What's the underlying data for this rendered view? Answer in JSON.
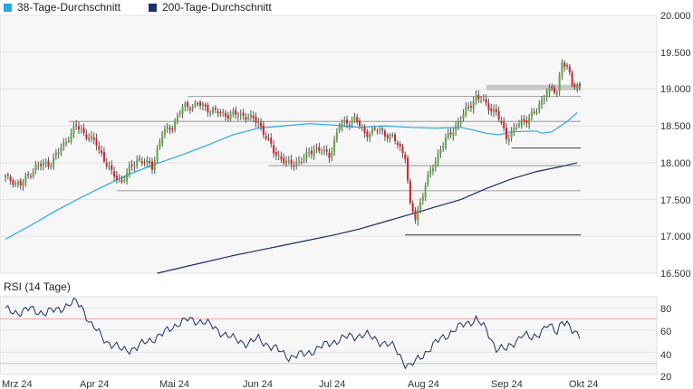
{
  "legend": [
    {
      "label": "38-Tage-Durchschnitt",
      "color": "#29a9e1"
    },
    {
      "label": "200-Tage-Durchschnitt",
      "color": "#1c2f6e"
    }
  ],
  "rsi_title": "RSI (14 Tage)",
  "chart_data": [
    {
      "type": "candlestick",
      "ylim": [
        16500,
        20000
      ],
      "y_ticks": [
        "20.000",
        "19.500",
        "19.000",
        "18.500",
        "18.000",
        "17.500",
        "17.000",
        "16.500"
      ],
      "x_ticks": [
        "Mrz 24",
        "Apr 24",
        "Mai 24",
        "Jun 24",
        "Jul 24",
        "Aug 24",
        "Sep 24",
        "Okt 24"
      ],
      "series": [
        {
          "name": "38-Tage-Durchschnitt",
          "color": "#29a9e1",
          "points": [
            [
              0,
              16960
            ],
            [
              10,
              17150
            ],
            [
              20,
              17350
            ],
            [
              30,
              17530
            ],
            [
              40,
              17700
            ],
            [
              50,
              17860
            ],
            [
              60,
              17990
            ],
            [
              70,
              18110
            ],
            [
              80,
              18240
            ],
            [
              90,
              18380
            ],
            [
              100,
              18470
            ],
            [
              110,
              18500
            ],
            [
              120,
              18530
            ],
            [
              130,
              18510
            ],
            [
              140,
              18480
            ],
            [
              150,
              18500
            ],
            [
              160,
              18480
            ],
            [
              170,
              18470
            ],
            [
              180,
              18480
            ],
            [
              184,
              18450
            ],
            [
              190,
              18400
            ],
            [
              195,
              18380
            ],
            [
              200,
              18420
            ],
            [
              210,
              18430
            ],
            [
              212,
              18400
            ],
            [
              216,
              18420
            ],
            [
              222,
              18560
            ],
            [
              226,
              18680
            ]
          ]
        },
        {
          "name": "200-Tage-Durchschnitt",
          "color": "#1c2f6e",
          "points": [
            [
              60,
              16500
            ],
            [
              70,
              16580
            ],
            [
              80,
              16660
            ],
            [
              90,
              16740
            ],
            [
              100,
              16810
            ],
            [
              110,
              16880
            ],
            [
              120,
              16950
            ],
            [
              130,
              17020
            ],
            [
              140,
              17100
            ],
            [
              150,
              17200
            ],
            [
              160,
              17300
            ],
            [
              170,
              17400
            ],
            [
              180,
              17500
            ],
            [
              190,
              17650
            ],
            [
              200,
              17780
            ],
            [
              210,
              17880
            ],
            [
              220,
              17950
            ],
            [
              226,
              18000
            ]
          ]
        }
      ],
      "levels": [
        {
          "value": 19020,
          "x": [
            190,
            226
          ]
        },
        {
          "value": 18900,
          "x": [
            72,
            226
          ]
        },
        {
          "value": 18560,
          "x": [
            25,
            226
          ]
        },
        {
          "value": 18200,
          "x": [
            200,
            226
          ]
        },
        {
          "value": 17960,
          "x": [
            104,
            226
          ]
        },
        {
          "value": 17620,
          "x": [
            44,
            226
          ]
        },
        {
          "value": 17020,
          "x": [
            158,
            226
          ]
        }
      ],
      "candles": {
        "count": 228,
        "anchors": [
          [
            0,
            17800
          ],
          [
            6,
            17700
          ],
          [
            12,
            17950
          ],
          [
            18,
            18000
          ],
          [
            28,
            18500
          ],
          [
            36,
            18250
          ],
          [
            42,
            17850
          ],
          [
            46,
            17750
          ],
          [
            52,
            18050
          ],
          [
            58,
            17950
          ],
          [
            62,
            18400
          ],
          [
            66,
            18500
          ],
          [
            70,
            18750
          ],
          [
            76,
            18800
          ],
          [
            82,
            18700
          ],
          [
            88,
            18650
          ],
          [
            94,
            18650
          ],
          [
            100,
            18550
          ],
          [
            106,
            18150
          ],
          [
            112,
            17970
          ],
          [
            118,
            18050
          ],
          [
            122,
            18200
          ],
          [
            128,
            18100
          ],
          [
            132,
            18500
          ],
          [
            138,
            18600
          ],
          [
            142,
            18400
          ],
          [
            148,
            18450
          ],
          [
            154,
            18300
          ],
          [
            158,
            18100
          ],
          [
            160,
            17400
          ],
          [
            162,
            17250
          ],
          [
            166,
            17700
          ],
          [
            172,
            18200
          ],
          [
            176,
            18400
          ],
          [
            182,
            18700
          ],
          [
            186,
            18900
          ],
          [
            194,
            18680
          ],
          [
            198,
            18350
          ],
          [
            204,
            18550
          ],
          [
            210,
            18700
          ],
          [
            214,
            19000
          ],
          [
            218,
            18950
          ],
          [
            220,
            19400
          ],
          [
            222,
            19300
          ],
          [
            224,
            19050
          ]
        ]
      }
    },
    {
      "type": "line",
      "title": "RSI (14 Tage)",
      "ylim": [
        20,
        90
      ],
      "y_ticks": [
        "80",
        "60",
        "40",
        "20"
      ],
      "levels": [
        {
          "value": 70,
          "color": "#f2a3a3"
        },
        {
          "value": 30,
          "color": "#a8d8a0"
        }
      ],
      "anchors": [
        [
          0,
          78
        ],
        [
          6,
          76
        ],
        [
          10,
          79
        ],
        [
          16,
          75
        ],
        [
          22,
          80
        ],
        [
          28,
          85
        ],
        [
          30,
          82
        ],
        [
          34,
          64
        ],
        [
          40,
          50
        ],
        [
          46,
          42
        ],
        [
          52,
          44
        ],
        [
          56,
          50
        ],
        [
          62,
          56
        ],
        [
          68,
          66
        ],
        [
          72,
          69
        ],
        [
          78,
          68
        ],
        [
          84,
          60
        ],
        [
          90,
          52
        ],
        [
          96,
          48
        ],
        [
          100,
          52
        ],
        [
          106,
          44
        ],
        [
          112,
          36
        ],
        [
          118,
          38
        ],
        [
          124,
          44
        ],
        [
          130,
          50
        ],
        [
          136,
          54
        ],
        [
          142,
          56
        ],
        [
          148,
          50
        ],
        [
          154,
          44
        ],
        [
          158,
          30
        ],
        [
          160,
          27
        ],
        [
          166,
          40
        ],
        [
          172,
          52
        ],
        [
          176,
          58
        ],
        [
          182,
          66
        ],
        [
          186,
          70
        ],
        [
          190,
          60
        ],
        [
          194,
          44
        ],
        [
          198,
          42
        ],
        [
          204,
          56
        ],
        [
          208,
          52
        ],
        [
          214,
          64
        ],
        [
          218,
          58
        ],
        [
          220,
          70
        ],
        [
          222,
          66
        ],
        [
          224,
          58
        ],
        [
          226,
          55
        ]
      ]
    }
  ]
}
